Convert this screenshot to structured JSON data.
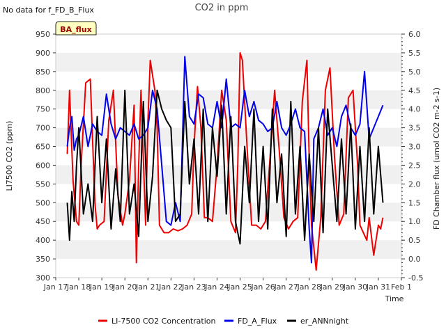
{
  "header": {
    "no_data_note": "No data for f_FD_B_Flux"
  },
  "badge": {
    "label": "BA_flux",
    "bg": "#ffffc0",
    "border": "#222222",
    "text_color": "#990000"
  },
  "chart_data": {
    "type": "line",
    "title": "CO2 in ppm",
    "xlabel": "Time",
    "ylabel": "LI7500 CO2 (ppm)",
    "y2label": "FD Chamber flux (umol CO2 m-2 s-1)",
    "x_ticks": [
      "Jan 17",
      "Jan 18",
      "Jan 19",
      "Jan 20",
      "Jan 21",
      "Jan 22",
      "Jan 23",
      "Jan 24",
      "Jan 25",
      "Jan 26",
      "Jan 27",
      "Jan 28",
      "Jan 29",
      "Jan 30",
      "Jan 31",
      "Feb 1"
    ],
    "xlim_days": [
      17,
      32
    ],
    "ylim": [
      300,
      950
    ],
    "y_ticks": [
      300,
      350,
      400,
      450,
      500,
      550,
      600,
      650,
      700,
      750,
      800,
      850,
      900,
      950
    ],
    "y2lim": [
      -0.5,
      6.0
    ],
    "y2_ticks": [
      "-0.5",
      "0.0",
      "0.5",
      "1.0",
      "1.5",
      "2.0",
      "2.5",
      "3.0",
      "3.5",
      "4.0",
      "4.5",
      "5.0",
      "5.5",
      "6.0"
    ],
    "grid_bands": true,
    "legend_position": "bottom",
    "series": [
      {
        "name": "LI-7500 CO2 Concentration",
        "axis": "left",
        "color": "#ee0000",
        "x": [
          17.5,
          17.6,
          17.75,
          17.9,
          18.0,
          18.1,
          18.3,
          18.5,
          18.7,
          18.8,
          18.9,
          19.1,
          19.3,
          19.5,
          19.7,
          19.9,
          20.0,
          20.2,
          20.4,
          20.5,
          20.6,
          20.7,
          20.9,
          21.0,
          21.1,
          21.2,
          21.3,
          21.4,
          21.5,
          21.7,
          21.9,
          22.1,
          22.3,
          22.5,
          22.7,
          22.9,
          23.0,
          23.15,
          23.3,
          23.45,
          23.6,
          23.8,
          24.0,
          24.2,
          24.4,
          24.6,
          24.8,
          24.9,
          25.0,
          25.1,
          25.3,
          25.5,
          25.7,
          25.9,
          26.1,
          26.3,
          26.5,
          26.7,
          26.9,
          27.1,
          27.3,
          27.5,
          27.7,
          27.9,
          28.0,
          28.1,
          28.3,
          28.5,
          28.7,
          28.9,
          29.1,
          29.3,
          29.5,
          29.7,
          29.9,
          30.1,
          30.2,
          30.35,
          30.5,
          30.6,
          30.8,
          31.0,
          31.1,
          31.2
        ],
        "values": [
          630,
          800,
          560,
          450,
          440,
          600,
          820,
          830,
          500,
          430,
          440,
          450,
          720,
          800,
          520,
          440,
          470,
          560,
          760,
          340,
          600,
          800,
          440,
          720,
          880,
          840,
          800,
          700,
          440,
          420,
          420,
          430,
          425,
          430,
          440,
          470,
          650,
          810,
          700,
          460,
          460,
          450,
          600,
          800,
          720,
          450,
          420,
          600,
          900,
          880,
          650,
          440,
          440,
          430,
          450,
          620,
          800,
          640,
          460,
          430,
          450,
          460,
          770,
          880,
          620,
          440,
          320,
          460,
          800,
          860,
          620,
          440,
          470,
          780,
          800,
          600,
          440,
          420,
          400,
          460,
          360,
          440,
          430,
          460
        ]
      },
      {
        "name": "FD_A_Flux",
        "axis": "right",
        "color": "#0000ee",
        "x": [
          17.5,
          17.6,
          17.7,
          17.8,
          17.9,
          18.0,
          18.2,
          18.4,
          18.6,
          18.8,
          19.0,
          19.2,
          19.4,
          19.6,
          19.8,
          20.0,
          20.2,
          20.4,
          20.6,
          20.8,
          21.0,
          21.2,
          21.4,
          21.6,
          21.8,
          22.0,
          22.2,
          22.4,
          22.6,
          22.8,
          23.0,
          23.2,
          23.4,
          23.6,
          23.8,
          24.0,
          24.2,
          24.4,
          24.6,
          24.8,
          25.0,
          25.2,
          25.4,
          25.6,
          25.8,
          26.0,
          26.2,
          26.4,
          26.6,
          26.8,
          27.0,
          27.2,
          27.4,
          27.6,
          27.8,
          28.0,
          28.1,
          28.2,
          28.4,
          28.6,
          28.8,
          29.0,
          29.2,
          29.4,
          29.6,
          29.8,
          30.0,
          30.2,
          30.4,
          30.6,
          30.8,
          31.0,
          31.2
        ],
        "values": [
          3.0,
          3.5,
          3.8,
          2.9,
          3.2,
          3.3,
          3.8,
          3.0,
          3.6,
          3.4,
          3.3,
          4.4,
          3.6,
          3.2,
          3.5,
          3.4,
          3.3,
          3.6,
          3.2,
          3.3,
          3.5,
          4.5,
          4.0,
          2.5,
          1.0,
          0.9,
          1.5,
          1.0,
          5.4,
          3.8,
          3.6,
          4.4,
          4.3,
          3.6,
          3.5,
          4.2,
          3.5,
          4.8,
          3.5,
          3.6,
          3.5,
          4.5,
          3.8,
          4.2,
          3.7,
          3.6,
          3.4,
          3.5,
          4.2,
          3.5,
          3.3,
          3.6,
          4.0,
          3.5,
          3.4,
          0.8,
          -0.1,
          3.2,
          3.5,
          4.0,
          3.3,
          3.5,
          3.0,
          3.8,
          4.1,
          3.5,
          3.3,
          3.6,
          5.0,
          3.2,
          3.5,
          3.8,
          4.1
        ]
      },
      {
        "name": "er_ANNnight",
        "axis": "right",
        "color": "#000000",
        "x": [
          17.5,
          17.6,
          17.7,
          17.8,
          17.9,
          18.0,
          18.2,
          18.4,
          18.6,
          18.8,
          19.0,
          19.2,
          19.4,
          19.6,
          19.8,
          20.0,
          20.2,
          20.4,
          20.6,
          20.8,
          21.0,
          21.2,
          21.4,
          21.6,
          21.8,
          22.0,
          22.2,
          22.4,
          22.6,
          22.8,
          23.0,
          23.2,
          23.4,
          23.6,
          23.8,
          24.0,
          24.2,
          24.4,
          24.6,
          24.8,
          25.0,
          25.2,
          25.4,
          25.6,
          25.8,
          26.0,
          26.2,
          26.4,
          26.6,
          26.8,
          27.0,
          27.2,
          27.4,
          27.6,
          27.8,
          28.0,
          28.2,
          28.4,
          28.6,
          28.8,
          29.0,
          29.2,
          29.4,
          29.6,
          29.8,
          30.0,
          30.2,
          30.4,
          30.6,
          30.8,
          31.0,
          31.2
        ],
        "values": [
          1.5,
          0.5,
          1.8,
          1.0,
          2.5,
          3.5,
          1.2,
          2.0,
          1.0,
          3.8,
          1.5,
          3.2,
          0.8,
          2.4,
          1.0,
          4.5,
          1.2,
          2.0,
          0.6,
          4.2,
          1.0,
          2.2,
          4.5,
          4.0,
          3.7,
          3.5,
          1.0,
          1.2,
          4.2,
          2.0,
          3.2,
          1.2,
          4.0,
          1.0,
          3.5,
          2.2,
          4.1,
          1.2,
          3.8,
          1.0,
          0.4,
          3.0,
          1.5,
          4.0,
          1.0,
          3.0,
          0.8,
          4.0,
          1.5,
          2.8,
          0.6,
          4.2,
          1.2,
          3.0,
          0.5,
          2.8,
          1.0,
          3.5,
          0.7,
          4.0,
          2.5,
          1.0,
          3.2,
          1.2,
          3.6,
          0.8,
          3.0,
          1.0,
          3.5,
          1.2,
          3.0,
          1.5
        ]
      }
    ]
  }
}
